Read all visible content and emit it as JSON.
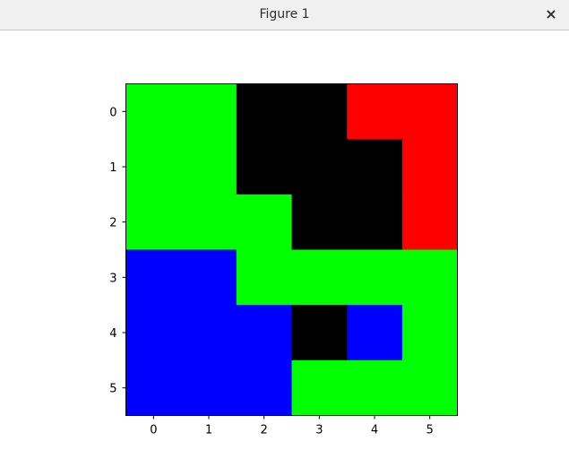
{
  "window": {
    "title": "Figure 1",
    "close_glyph": "×"
  },
  "colors": {
    "G": "#00ff00",
    "K": "#000000",
    "R": "#ff0000",
    "B": "#0000ff"
  },
  "chart_data": {
    "type": "heatmap",
    "title": "",
    "xlabel": "",
    "ylabel": "",
    "x_ticks": [
      "0",
      "1",
      "2",
      "3",
      "4",
      "5"
    ],
    "y_ticks": [
      "0",
      "1",
      "2",
      "3",
      "4",
      "5"
    ],
    "legend": "none",
    "grid": false,
    "cells": [
      [
        "G",
        "G",
        "K",
        "K",
        "R",
        "R"
      ],
      [
        "G",
        "G",
        "K",
        "K",
        "K",
        "R"
      ],
      [
        "G",
        "G",
        "G",
        "K",
        "K",
        "R"
      ],
      [
        "B",
        "B",
        "G",
        "G",
        "G",
        "G"
      ],
      [
        "B",
        "B",
        "B",
        "K",
        "B",
        "G"
      ],
      [
        "B",
        "B",
        "B",
        "G",
        "G",
        "G"
      ]
    ]
  }
}
